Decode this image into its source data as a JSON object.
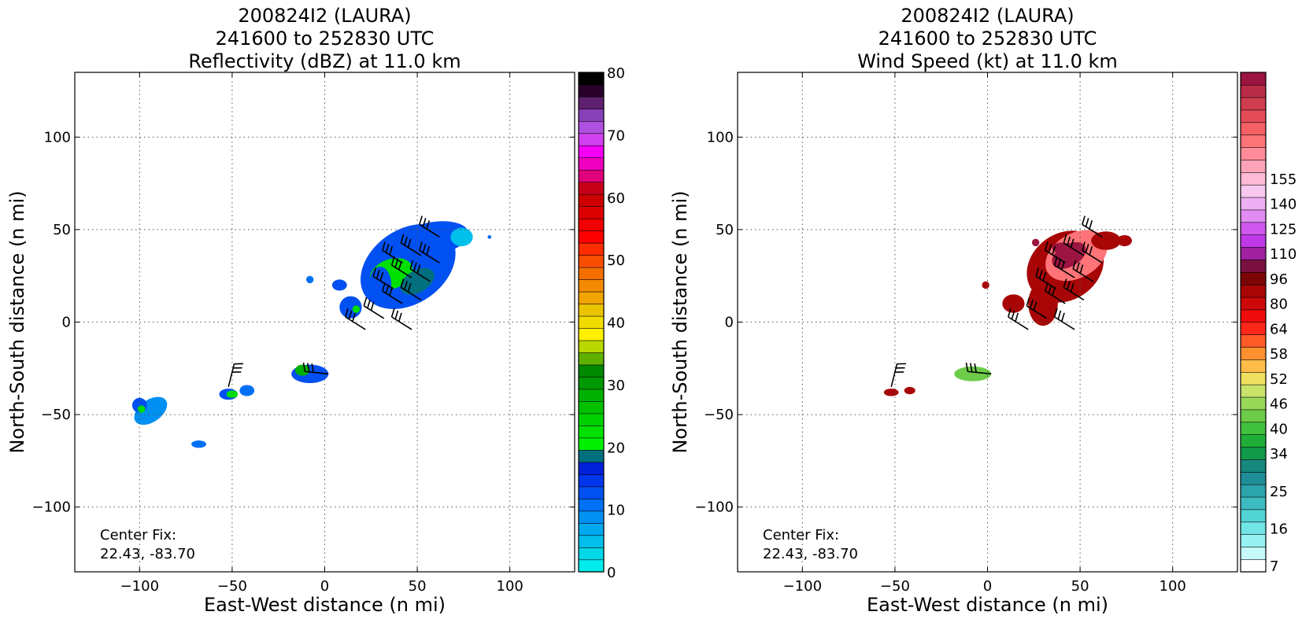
{
  "chart_data": [
    {
      "type": "heatmap",
      "title": "200824I2 (LAURA)",
      "subtitle_time": "241600 to 252830 UTC",
      "subtitle_field": "Reflectivity (dBZ) at 11.0 km",
      "xlabel": "East-West distance (n mi)",
      "ylabel": "North-South distance (n mi)",
      "xlim": [
        -135,
        135
      ],
      "ylim": [
        -135,
        135
      ],
      "xticks": [
        -100,
        -50,
        0,
        50,
        100
      ],
      "yticks": [
        -100,
        -50,
        0,
        50,
        100
      ],
      "xticklabels": [
        "−100",
        "−50",
        "0",
        "50",
        "100"
      ],
      "yticklabels": [
        "−100",
        "−50",
        "0",
        "50",
        "100"
      ],
      "grid": true,
      "annotation_line1": "Center Fix:",
      "annotation_line2": "22.43, -83.70",
      "colorbar": {
        "min": 0,
        "max": 80,
        "ticks": [
          0,
          10,
          20,
          30,
          40,
          50,
          60,
          70,
          80
        ],
        "ticklabels": [
          "0",
          "10",
          "20",
          "30",
          "40",
          "50",
          "60",
          "70",
          "80"
        ],
        "colors": [
          "#00ecec",
          "#00d8e8",
          "#00bfea",
          "#00a8ee",
          "#0090f2",
          "#0070f4",
          "#0050f2",
          "#0036ec",
          "#0020d8",
          "#007080",
          "#00f000",
          "#00e000",
          "#00d000",
          "#00c000",
          "#00b000",
          "#009800",
          "#008800",
          "#60b000",
          "#b8d800",
          "#fff000",
          "#f2dc00",
          "#eac400",
          "#f2a400",
          "#f48a00",
          "#f46e00",
          "#f84e00",
          "#ff2c00",
          "#ff0000",
          "#f00000",
          "#dc0000",
          "#cc0000",
          "#c80018",
          "#e0007a",
          "#f000c0",
          "#f600f6",
          "#d040f0",
          "#b050e0",
          "#8840b8",
          "#602070",
          "#280028",
          "#000000"
        ]
      },
      "blobs": [
        {
          "x": 45,
          "y": 30,
          "rx": 28,
          "ry": 20,
          "angle": -35,
          "value": 12
        },
        {
          "x": 58,
          "y": 45,
          "rx": 20,
          "ry": 9,
          "angle": -10,
          "value": 12
        },
        {
          "x": 74,
          "y": 46,
          "rx": 6,
          "ry": 5,
          "angle": 0,
          "value": 5
        },
        {
          "x": 36,
          "y": 26,
          "rx": 12,
          "ry": 8,
          "angle": -20,
          "value": 22
        },
        {
          "x": 50,
          "y": 22,
          "rx": 10,
          "ry": 6,
          "angle": -30,
          "value": 18
        },
        {
          "x": 30,
          "y": 20,
          "rx": 6,
          "ry": 10,
          "angle": 0,
          "value": 12
        },
        {
          "x": 8,
          "y": 20,
          "rx": 4,
          "ry": 3,
          "angle": 0,
          "value": 12
        },
        {
          "x": 14,
          "y": 8,
          "rx": 6,
          "ry": 6,
          "angle": 0,
          "value": 12
        },
        {
          "x": 17,
          "y": 7,
          "rx": 2,
          "ry": 2,
          "angle": 0,
          "value": 22
        },
        {
          "x": -8,
          "y": -28,
          "rx": 10,
          "ry": 5,
          "angle": 0,
          "value": 12
        },
        {
          "x": -12,
          "y": -26,
          "rx": 4,
          "ry": 3,
          "angle": 0,
          "value": 28
        },
        {
          "x": -52,
          "y": -39,
          "rx": 5,
          "ry": 3,
          "angle": 0,
          "value": 12
        },
        {
          "x": -50,
          "y": -39,
          "rx": 3,
          "ry": 2,
          "angle": 0,
          "value": 22
        },
        {
          "x": -42,
          "y": -37,
          "rx": 4,
          "ry": 3,
          "angle": 0,
          "value": 10
        },
        {
          "x": -94,
          "y": -48,
          "rx": 10,
          "ry": 6,
          "angle": -35,
          "value": 8
        },
        {
          "x": -100,
          "y": -45,
          "rx": 4,
          "ry": 4,
          "angle": 0,
          "value": 12
        },
        {
          "x": -99,
          "y": -47,
          "rx": 2,
          "ry": 2,
          "angle": 0,
          "value": 22
        },
        {
          "x": -68,
          "y": -66,
          "rx": 4,
          "ry": 2,
          "angle": 0,
          "value": 10
        },
        {
          "x": 89,
          "y": 46,
          "rx": 1,
          "ry": 1,
          "angle": 0,
          "value": 10
        },
        {
          "x": -8,
          "y": 23,
          "rx": 2,
          "ry": 2,
          "angle": 0,
          "value": 10
        }
      ],
      "barbs": [
        {
          "x": 62,
          "y": 46,
          "u": -8,
          "v": 5
        },
        {
          "x": 52,
          "y": 36,
          "u": -8,
          "v": 5
        },
        {
          "x": 62,
          "y": 32,
          "u": -8,
          "v": 5
        },
        {
          "x": 42,
          "y": 32,
          "u": -8,
          "v": 5
        },
        {
          "x": 47,
          "y": 24,
          "u": -8,
          "v": 5
        },
        {
          "x": 57,
          "y": 22,
          "u": -8,
          "v": 5
        },
        {
          "x": 37,
          "y": 18,
          "u": -8,
          "v": 5
        },
        {
          "x": 52,
          "y": 12,
          "u": -8,
          "v": 5
        },
        {
          "x": 42,
          "y": 10,
          "u": -8,
          "v": 5
        },
        {
          "x": 32,
          "y": 2,
          "u": -8,
          "v": 5
        },
        {
          "x": 22,
          "y": -4,
          "u": -8,
          "v": 5
        },
        {
          "x": 47,
          "y": -4,
          "u": -8,
          "v": 5
        },
        {
          "x": 2,
          "y": -28,
          "u": -10,
          "v": 1
        },
        {
          "x": -52,
          "y": -35,
          "u": 2,
          "v": 8
        }
      ]
    },
    {
      "type": "heatmap",
      "title": "200824I2 (LAURA)",
      "subtitle_time": "241600 to 252830 UTC",
      "subtitle_field": "Wind Speed (kt) at 11.0 km",
      "xlabel": "East-West distance (n mi)",
      "ylabel": "North-South distance (n mi)",
      "xlim": [
        -135,
        135
      ],
      "ylim": [
        -135,
        135
      ],
      "xticks": [
        -100,
        -50,
        0,
        50,
        100
      ],
      "yticks": [
        -100,
        -50,
        0,
        50,
        100
      ],
      "xticklabels": [
        "−100",
        "−50",
        "0",
        "50",
        "100"
      ],
      "yticklabels": [
        "−100",
        "−50",
        "0",
        "50",
        "100"
      ],
      "grid": true,
      "annotation_line1": "Center Fix:",
      "annotation_line2": "22.43, -83.70",
      "colorbar": {
        "ticklabels": [
          "7",
          "16",
          "25",
          "34",
          "40",
          "46",
          "52",
          "58",
          "64",
          "80",
          "96",
          "110",
          "125",
          "140",
          "155"
        ],
        "tick_index": [
          0,
          3,
          6,
          9,
          11,
          13,
          15,
          17,
          19,
          21,
          23,
          25,
          27,
          29,
          31
        ],
        "colors": [
          "#ffffff",
          "#c6fafa",
          "#98f2f2",
          "#72e6e6",
          "#52d4d4",
          "#3cbcc0",
          "#2ca4ac",
          "#208e98",
          "#16887e",
          "#109a4a",
          "#20ae38",
          "#42c040",
          "#6ccc48",
          "#9ad85a",
          "#c8e26a",
          "#f0e060",
          "#ffbc48",
          "#ff9030",
          "#ff5a28",
          "#ff2818",
          "#ee0c0c",
          "#cc0808",
          "#a80606",
          "#7c0606",
          "#7a1040",
          "#a020a0",
          "#c038e8",
          "#d058ee",
          "#e08cf2",
          "#eeb0f2",
          "#f8c8ee",
          "#ffbad6",
          "#ffa4b8",
          "#ff8c98",
          "#ff7478",
          "#f46064",
          "#e44c58",
          "#d03c50",
          "#b82c48",
          "#9c1440"
        ]
      },
      "blobs": [
        {
          "x": 42,
          "y": 30,
          "rx": 22,
          "ry": 18,
          "angle": -35,
          "value": 22
        },
        {
          "x": 48,
          "y": 36,
          "rx": 18,
          "ry": 12,
          "angle": -30,
          "value": 34
        },
        {
          "x": 44,
          "y": 36,
          "rx": 10,
          "ry": 6,
          "angle": -30,
          "value": 40
        },
        {
          "x": 40,
          "y": 40,
          "rx": 5,
          "ry": 3,
          "angle": 0,
          "value": 44
        },
        {
          "x": 26,
          "y": 43,
          "rx": 2,
          "ry": 2,
          "angle": 0,
          "value": 46
        },
        {
          "x": 30,
          "y": 10,
          "rx": 8,
          "ry": 12,
          "angle": 0,
          "value": 22
        },
        {
          "x": 14,
          "y": 10,
          "rx": 6,
          "ry": 5,
          "angle": 0,
          "value": 22
        },
        {
          "x": 64,
          "y": 44,
          "rx": 8,
          "ry": 5,
          "angle": 0,
          "value": 22
        },
        {
          "x": 74,
          "y": 44,
          "rx": 4,
          "ry": 3,
          "angle": 0,
          "value": 22
        },
        {
          "x": -8,
          "y": -28,
          "rx": 10,
          "ry": 4,
          "angle": 0,
          "value": 12
        },
        {
          "x": -52,
          "y": -38,
          "rx": 4,
          "ry": 2,
          "angle": 0,
          "value": 22
        },
        {
          "x": -42,
          "y": -37,
          "rx": 3,
          "ry": 2,
          "angle": 0,
          "value": 22
        },
        {
          "x": -1,
          "y": 20,
          "rx": 2,
          "ry": 2,
          "angle": 0,
          "value": 22
        }
      ],
      "barbs": [
        {
          "x": 62,
          "y": 46,
          "u": -8,
          "v": 5
        },
        {
          "x": 52,
          "y": 36,
          "u": -8,
          "v": 5
        },
        {
          "x": 62,
          "y": 32,
          "u": -8,
          "v": 5
        },
        {
          "x": 42,
          "y": 32,
          "u": -8,
          "v": 5
        },
        {
          "x": 47,
          "y": 24,
          "u": -8,
          "v": 5
        },
        {
          "x": 57,
          "y": 22,
          "u": -8,
          "v": 5
        },
        {
          "x": 37,
          "y": 18,
          "u": -8,
          "v": 5
        },
        {
          "x": 52,
          "y": 12,
          "u": -8,
          "v": 5
        },
        {
          "x": 42,
          "y": 10,
          "u": -8,
          "v": 5
        },
        {
          "x": 32,
          "y": 2,
          "u": -8,
          "v": 5
        },
        {
          "x": 22,
          "y": -4,
          "u": -8,
          "v": 5
        },
        {
          "x": 47,
          "y": -4,
          "u": -8,
          "v": 5
        },
        {
          "x": 2,
          "y": -28,
          "u": -10,
          "v": 1
        },
        {
          "x": -52,
          "y": -35,
          "u": 2,
          "v": 8
        }
      ]
    }
  ]
}
